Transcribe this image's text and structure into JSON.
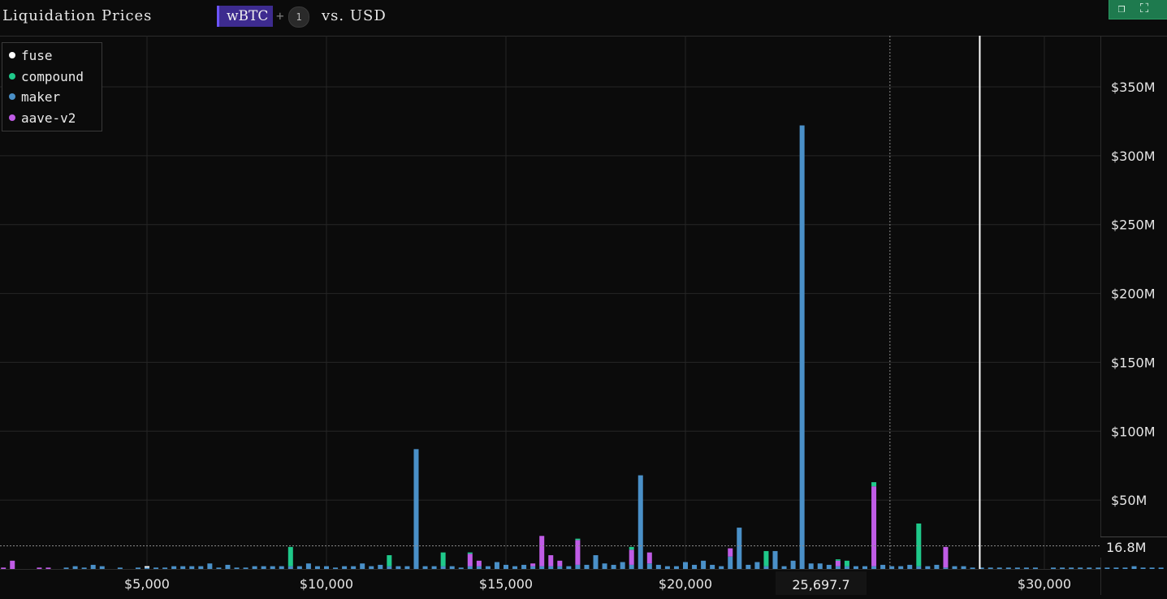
{
  "header": {
    "title": "Liquidation Prices",
    "asset": "wBTC",
    "plus": "+",
    "extra_count": "1",
    "versus": "vs. USD"
  },
  "window_controls": {
    "icons": [
      "copy-icon",
      "fullscreen-icon"
    ],
    "accent": "#1e7a4e"
  },
  "crosshair": {
    "y_value": "16.8M",
    "x_value": "25,697.7",
    "x_data": 25697.7,
    "y_data": 16.8
  },
  "current_price_line": 28200,
  "chart_data": {
    "type": "bar",
    "stacked": true,
    "title": "Liquidation Prices",
    "xlabel": "",
    "ylabel": "",
    "xlim": [
      500,
      34000
    ],
    "ylim": [
      0,
      385
    ],
    "y_unit": "M USD",
    "bin_width": 250,
    "x_ticks": [
      5000,
      10000,
      15000,
      20000,
      30000
    ],
    "x_tick_labels": [
      "$5,000",
      "$10,000",
      "$15,000",
      "$20,000",
      "$30,000"
    ],
    "y_ticks": [
      50,
      100,
      150,
      200,
      250,
      300,
      350
    ],
    "y_tick_labels": [
      "$50M",
      "$100M",
      "$150M",
      "$200M",
      "$250M",
      "$300M",
      "$350M"
    ],
    "grid": true,
    "legend_position": "top-left",
    "series": [
      {
        "name": "fuse",
        "color": "#ffffff"
      },
      {
        "name": "compound",
        "color": "#1fc98a"
      },
      {
        "name": "maker",
        "color": "#4a90c8"
      },
      {
        "name": "aave-v2",
        "color": "#c05ce6"
      }
    ],
    "bars": [
      {
        "x": 500,
        "aave": 1
      },
      {
        "x": 1000,
        "aave": 1
      },
      {
        "x": 1250,
        "aave": 6
      },
      {
        "x": 2000,
        "aave": 1
      },
      {
        "x": 2250,
        "aave": 1
      },
      {
        "x": 2750,
        "maker": 1
      },
      {
        "x": 3000,
        "maker": 2
      },
      {
        "x": 3250,
        "maker": 1
      },
      {
        "x": 3500,
        "maker": 3
      },
      {
        "x": 3750,
        "maker": 2
      },
      {
        "x": 4250,
        "maker": 1
      },
      {
        "x": 4750,
        "maker": 1
      },
      {
        "x": 5000,
        "maker": 1,
        "fuse": 1
      },
      {
        "x": 5250,
        "maker": 1
      },
      {
        "x": 5500,
        "maker": 1
      },
      {
        "x": 5750,
        "maker": 2
      },
      {
        "x": 6000,
        "maker": 2
      },
      {
        "x": 6250,
        "maker": 2
      },
      {
        "x": 6500,
        "maker": 2
      },
      {
        "x": 6750,
        "maker": 4
      },
      {
        "x": 7000,
        "maker": 1
      },
      {
        "x": 7250,
        "maker": 3
      },
      {
        "x": 7500,
        "maker": 1
      },
      {
        "x": 7750,
        "maker": 1
      },
      {
        "x": 8000,
        "maker": 2
      },
      {
        "x": 8250,
        "maker": 2
      },
      {
        "x": 8500,
        "maker": 2
      },
      {
        "x": 8750,
        "maker": 2
      },
      {
        "x": 9000,
        "maker": 2,
        "compound": 14
      },
      {
        "x": 9250,
        "maker": 2
      },
      {
        "x": 9500,
        "maker": 4
      },
      {
        "x": 9750,
        "maker": 2
      },
      {
        "x": 10000,
        "maker": 2
      },
      {
        "x": 10250,
        "maker": 1
      },
      {
        "x": 10500,
        "maker": 2
      },
      {
        "x": 10750,
        "maker": 2
      },
      {
        "x": 11000,
        "maker": 4
      },
      {
        "x": 11250,
        "maker": 2
      },
      {
        "x": 11500,
        "maker": 3
      },
      {
        "x": 11750,
        "maker": 2,
        "compound": 8
      },
      {
        "x": 12000,
        "maker": 2
      },
      {
        "x": 12250,
        "maker": 2
      },
      {
        "x": 12500,
        "maker": 87
      },
      {
        "x": 12750,
        "maker": 2
      },
      {
        "x": 13000,
        "maker": 2
      },
      {
        "x": 13250,
        "maker": 2,
        "compound": 10
      },
      {
        "x": 13500,
        "maker": 2
      },
      {
        "x": 13750,
        "maker": 1
      },
      {
        "x": 14000,
        "maker": 2,
        "aave": 9,
        "compound": 1
      },
      {
        "x": 14250,
        "maker": 2,
        "aave": 4
      },
      {
        "x": 14500,
        "maker": 2
      },
      {
        "x": 14750,
        "maker": 5
      },
      {
        "x": 15000,
        "maker": 3
      },
      {
        "x": 15250,
        "maker": 2
      },
      {
        "x": 15500,
        "maker": 3
      },
      {
        "x": 15750,
        "maker": 2,
        "aave": 2
      },
      {
        "x": 16000,
        "maker": 2,
        "aave": 22
      },
      {
        "x": 16250,
        "maker": 2,
        "aave": 8
      },
      {
        "x": 16500,
        "maker": 2,
        "aave": 4
      },
      {
        "x": 16750,
        "maker": 2
      },
      {
        "x": 17000,
        "maker": 3,
        "aave": 18,
        "compound": 1
      },
      {
        "x": 17250,
        "maker": 3
      },
      {
        "x": 17500,
        "maker": 10
      },
      {
        "x": 17750,
        "maker": 4
      },
      {
        "x": 18000,
        "maker": 3
      },
      {
        "x": 18250,
        "maker": 5
      },
      {
        "x": 18500,
        "maker": 3,
        "aave": 11,
        "compound": 2
      },
      {
        "x": 18750,
        "maker": 68
      },
      {
        "x": 19000,
        "maker": 4,
        "aave": 8
      },
      {
        "x": 19250,
        "maker": 3
      },
      {
        "x": 19500,
        "maker": 2
      },
      {
        "x": 19750,
        "maker": 2
      },
      {
        "x": 20000,
        "maker": 5
      },
      {
        "x": 20250,
        "maker": 3
      },
      {
        "x": 20500,
        "maker": 6
      },
      {
        "x": 20750,
        "maker": 3
      },
      {
        "x": 21000,
        "maker": 2
      },
      {
        "x": 21250,
        "maker": 9,
        "aave": 6
      },
      {
        "x": 21500,
        "maker": 30
      },
      {
        "x": 21750,
        "maker": 3
      },
      {
        "x": 22000,
        "maker": 5
      },
      {
        "x": 22250,
        "maker": 2,
        "compound": 11
      },
      {
        "x": 22500,
        "maker": 13
      },
      {
        "x": 22750,
        "maker": 2
      },
      {
        "x": 23000,
        "maker": 6
      },
      {
        "x": 23250,
        "maker": 322
      },
      {
        "x": 23500,
        "maker": 4
      },
      {
        "x": 23750,
        "maker": 4
      },
      {
        "x": 24000,
        "maker": 3
      },
      {
        "x": 24250,
        "maker": 2,
        "aave": 4,
        "compound": 1
      },
      {
        "x": 24500,
        "maker": 2,
        "compound": 4
      },
      {
        "x": 24750,
        "maker": 2
      },
      {
        "x": 25000,
        "maker": 2
      },
      {
        "x": 25250,
        "maker": 2,
        "aave": 58,
        "compound": 3
      },
      {
        "x": 25500,
        "maker": 3
      },
      {
        "x": 25750,
        "maker": 2
      },
      {
        "x": 26000,
        "maker": 2
      },
      {
        "x": 26250,
        "maker": 3
      },
      {
        "x": 26500,
        "maker": 2,
        "compound": 31
      },
      {
        "x": 26750,
        "maker": 2
      },
      {
        "x": 27000,
        "maker": 3
      },
      {
        "x": 27250,
        "maker": 1,
        "aave": 15
      },
      {
        "x": 27500,
        "maker": 2
      },
      {
        "x": 27750,
        "maker": 2
      },
      {
        "x": 28000,
        "maker": 1
      },
      {
        "x": 28250,
        "maker": 1
      },
      {
        "x": 28500,
        "maker": 1
      },
      {
        "x": 28750,
        "maker": 1
      },
      {
        "x": 29000,
        "maker": 1
      },
      {
        "x": 29250,
        "maker": 1
      },
      {
        "x": 29500,
        "maker": 1
      },
      {
        "x": 29750,
        "maker": 1
      },
      {
        "x": 30250,
        "maker": 1
      },
      {
        "x": 30500,
        "maker": 1
      },
      {
        "x": 30750,
        "maker": 1
      },
      {
        "x": 31000,
        "maker": 1
      },
      {
        "x": 31250,
        "maker": 1
      },
      {
        "x": 31500,
        "maker": 1
      },
      {
        "x": 31750,
        "maker": 1
      },
      {
        "x": 32000,
        "maker": 1
      },
      {
        "x": 32250,
        "maker": 1
      },
      {
        "x": 32500,
        "maker": 2
      },
      {
        "x": 32750,
        "maker": 1
      },
      {
        "x": 33000,
        "maker": 1
      },
      {
        "x": 33250,
        "maker": 1
      },
      {
        "x": 33500,
        "maker": 1
      }
    ]
  }
}
